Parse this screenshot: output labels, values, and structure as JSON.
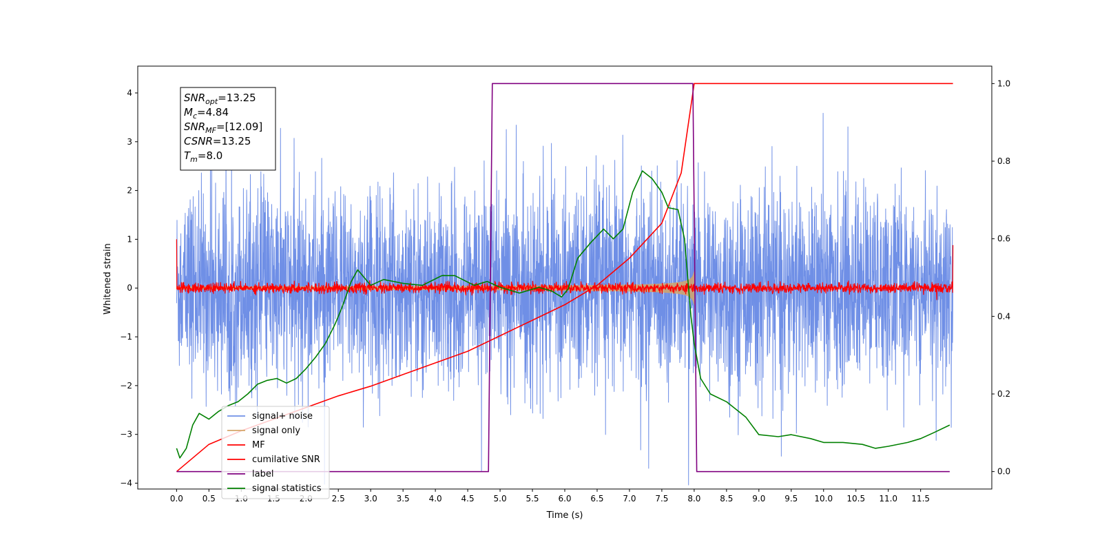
{
  "chart_data": {
    "type": "line",
    "title": "",
    "xlabel": "Time (s)",
    "ylabel": "Whitened strain",
    "xlim": [
      -0.6,
      12.6
    ],
    "ylim": [
      -4.12,
      4.55
    ],
    "y2lim": [
      -0.045,
      1.045
    ],
    "x_ticks": [
      "0.0",
      "0.5",
      "1.0",
      "1.5",
      "2.0",
      "2.5",
      "3.0",
      "3.5",
      "4.0",
      "4.5",
      "5.0",
      "5.5",
      "6.0",
      "6.5",
      "7.0",
      "7.5",
      "8.0",
      "8.5",
      "9.0",
      "9.5",
      "10.0",
      "10.5",
      "11.0",
      "11.5"
    ],
    "y_ticks": [
      "-4",
      "-3",
      "-2",
      "-1",
      "0",
      "1",
      "2",
      "3",
      "4"
    ],
    "y2_ticks": [
      "0.0",
      "0.2",
      "0.4",
      "0.6",
      "0.8",
      "1.0"
    ],
    "grid": false,
    "legend_position": "lower-left",
    "series": [
      {
        "name": "signal+ noise",
        "color": "#6f8fe6",
        "axis": "left",
        "kind": "noise",
        "std": 1.0,
        "x_range": [
          0,
          12
        ]
      },
      {
        "name": "signal only",
        "color": "#d4a66a",
        "axis": "left",
        "kind": "chirp",
        "amp_start": 0.05,
        "amp_end": 1.3,
        "x_range": [
          0,
          8.0
        ]
      },
      {
        "name": "MF",
        "color": "#ff0000",
        "axis": "left",
        "kind": "noise",
        "std": 0.05,
        "x_range": [
          0,
          12
        ],
        "edge_values": [
          1.0,
          0.88
        ]
      },
      {
        "name": "cumilative SNR",
        "color": "#ff0000",
        "axis": "right",
        "x": [
          0.0,
          0.5,
          1.0,
          1.5,
          2.0,
          2.5,
          3.0,
          3.5,
          4.0,
          4.5,
          5.0,
          5.5,
          6.0,
          6.5,
          7.0,
          7.5,
          7.8,
          8.0,
          12.0
        ],
        "values": [
          0.0,
          0.07,
          0.105,
          0.135,
          0.165,
          0.195,
          0.22,
          0.25,
          0.28,
          0.31,
          0.35,
          0.39,
          0.43,
          0.48,
          0.55,
          0.64,
          0.77,
          1.0,
          1.0
        ]
      },
      {
        "name": "label",
        "color": "#800080",
        "axis": "right",
        "x": [
          0.0,
          4.82,
          4.88,
          7.98,
          8.04,
          11.95
        ],
        "values": [
          0.0,
          0.0,
          1.0,
          1.0,
          0.0,
          0.0
        ]
      },
      {
        "name": "signal statistics",
        "color": "#008000",
        "axis": "right",
        "x": [
          0.0,
          0.05,
          0.15,
          0.25,
          0.35,
          0.5,
          0.65,
          0.8,
          0.95,
          1.1,
          1.25,
          1.4,
          1.55,
          1.7,
          1.85,
          2.0,
          2.15,
          2.3,
          2.45,
          2.55,
          2.7,
          2.8,
          3.0,
          3.2,
          3.5,
          3.8,
          4.1,
          4.3,
          4.6,
          4.8,
          5.0,
          5.3,
          5.6,
          5.8,
          5.95,
          6.05,
          6.2,
          6.4,
          6.6,
          6.75,
          6.9,
          7.05,
          7.2,
          7.35,
          7.5,
          7.6,
          7.75,
          7.85,
          7.95,
          8.0,
          8.1,
          8.25,
          8.5,
          8.8,
          9.0,
          9.3,
          9.5,
          9.8,
          10.0,
          10.3,
          10.6,
          10.8,
          11.0,
          11.3,
          11.5,
          11.7,
          11.95
        ],
        "values": [
          0.06,
          0.035,
          0.06,
          0.12,
          0.15,
          0.135,
          0.155,
          0.17,
          0.18,
          0.2,
          0.225,
          0.235,
          0.24,
          0.228,
          0.24,
          0.265,
          0.295,
          0.33,
          0.38,
          0.42,
          0.49,
          0.52,
          0.48,
          0.495,
          0.485,
          0.48,
          0.505,
          0.505,
          0.48,
          0.49,
          0.475,
          0.46,
          0.475,
          0.465,
          0.45,
          0.47,
          0.55,
          0.59,
          0.625,
          0.6,
          0.625,
          0.72,
          0.775,
          0.755,
          0.72,
          0.68,
          0.675,
          0.6,
          0.4,
          0.33,
          0.24,
          0.2,
          0.18,
          0.14,
          0.095,
          0.09,
          0.095,
          0.085,
          0.075,
          0.075,
          0.07,
          0.06,
          0.065,
          0.075,
          0.085,
          0.1,
          0.12
        ]
      }
    ],
    "annotations": [
      {
        "base": "SNR",
        "sub": "opt",
        "rest": "=13.25"
      },
      {
        "base": "M",
        "sub": "c",
        "rest": "=4.84"
      },
      {
        "base": "SNR",
        "sub": "MF",
        "rest": "=[12.09]"
      },
      {
        "base": "CSNR",
        "sub": "",
        "rest": "=13.25"
      },
      {
        "base": "T",
        "sub": "m",
        "rest": "=8.0"
      }
    ]
  }
}
